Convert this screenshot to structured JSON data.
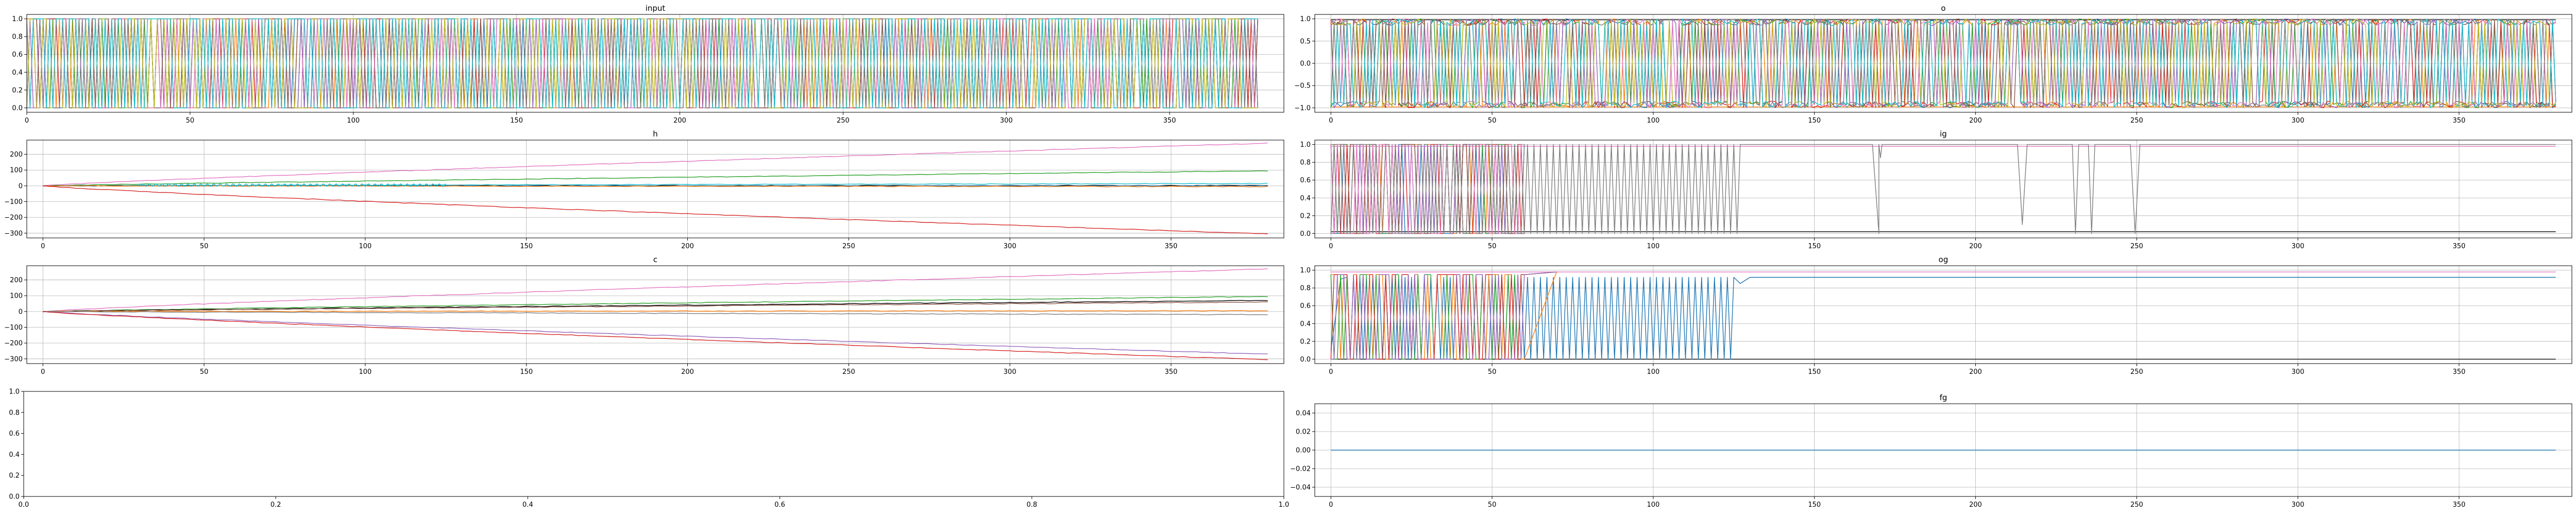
{
  "palette": [
    "#1f77b4",
    "#ff7f0e",
    "#2ca02c",
    "#d62728",
    "#9467bd",
    "#8c564b",
    "#e377c2",
    "#7f7f7f",
    "#bcbd22",
    "#17becf"
  ],
  "chart_data": [
    {
      "id": "input",
      "type": "line",
      "title": "input",
      "xlim": [
        0,
        385
      ],
      "ylim": [
        -0.05,
        1.05
      ],
      "xticks": [
        0,
        50,
        100,
        150,
        200,
        250,
        300,
        350
      ],
      "yticks": [
        0.0,
        0.2,
        0.4,
        0.6,
        0.8,
        1.0
      ],
      "grid": true,
      "legend": "none",
      "x_range": [
        0,
        377
      ],
      "series_description": "many binary series switching between 0 and 1 at almost every step",
      "series_count": 10,
      "pattern": "binary_toggle"
    },
    {
      "id": "o",
      "type": "line",
      "title": "o",
      "xlim": [
        -5,
        385
      ],
      "ylim": [
        -1.1,
        1.1
      ],
      "xticks": [
        0,
        50,
        100,
        150,
        200,
        250,
        300,
        350
      ],
      "yticks": [
        -1.0,
        -0.5,
        0.0,
        0.5,
        1.0
      ],
      "grid": true,
      "legend": "none",
      "x_range": [
        0,
        380
      ],
      "series_count": 10,
      "pattern": "signed_toggle"
    },
    {
      "id": "h",
      "type": "line",
      "title": "h",
      "xlim": [
        -5,
        385
      ],
      "ylim": [
        -330,
        290
      ],
      "xticks": [
        0,
        50,
        100,
        150,
        200,
        250,
        300,
        350
      ],
      "yticks": [
        -300,
        -200,
        -100,
        0,
        100,
        200
      ],
      "grid": true,
      "legend": "none",
      "x_range": [
        0,
        380
      ],
      "series": [
        {
          "color": "#e377c2",
          "end": 270
        },
        {
          "color": "#2ca02c",
          "end": 95
        },
        {
          "color": "#17becf",
          "end": 15
        },
        {
          "color": "#000000",
          "end": 2
        },
        {
          "color": "#1f77b4",
          "end": 0
        },
        {
          "color": "#ff7f0e",
          "end": -5
        },
        {
          "color": "#d62728",
          "end": -305
        }
      ],
      "oscillation": {
        "color": "#17becf",
        "x_range": [
          30,
          125
        ],
        "amplitude": 8
      }
    },
    {
      "id": "ig",
      "type": "line",
      "title": "ig",
      "xlim": [
        -5,
        385
      ],
      "ylim": [
        -0.05,
        1.05
      ],
      "xticks": [
        0,
        50,
        100,
        150,
        200,
        250,
        300,
        350
      ],
      "yticks": [
        0.0,
        0.2,
        0.4,
        0.6,
        0.8,
        1.0
      ],
      "grid": true,
      "legend": "none",
      "x_range": [
        0,
        380
      ],
      "dense_region": [
        0,
        60
      ],
      "grey_oscillation": [
        60,
        127
      ],
      "grey_dips": [
        [
          168,
          172,
          0.0
        ],
        [
          170,
          171,
          0.85
        ],
        [
          213,
          216,
          0.1
        ],
        [
          230,
          232,
          0.0
        ],
        [
          235,
          237,
          0.0
        ],
        [
          248,
          251,
          0.0
        ]
      ]
    },
    {
      "id": "c",
      "type": "line",
      "title": "c",
      "xlim": [
        -5,
        385
      ],
      "ylim": [
        -330,
        290
      ],
      "xticks": [
        0,
        50,
        100,
        150,
        200,
        250,
        300,
        350
      ],
      "yticks": [
        -300,
        -200,
        -100,
        0,
        100,
        200
      ],
      "grid": true,
      "legend": "none",
      "x_range": [
        0,
        380
      ],
      "series": [
        {
          "color": "#e377c2",
          "end": 270
        },
        {
          "color": "#2ca02c",
          "end": 95
        },
        {
          "color": "#000000",
          "end": 70
        },
        {
          "color": "#8c564b",
          "end": 60
        },
        {
          "color": "#ff7f0e",
          "end": 5
        },
        {
          "color": "#7f7f7f",
          "end": -20
        },
        {
          "color": "#9467bd",
          "end": -270
        },
        {
          "color": "#d62728",
          "end": -305
        }
      ]
    },
    {
      "id": "og",
      "type": "line",
      "title": "og",
      "xlim": [
        -5,
        385
      ],
      "ylim": [
        -0.05,
        1.05
      ],
      "xticks": [
        0,
        50,
        100,
        150,
        200,
        250,
        300,
        350
      ],
      "yticks": [
        0.0,
        0.2,
        0.4,
        0.6,
        0.8,
        1.0
      ],
      "grid": true,
      "legend": "none",
      "x_range": [
        0,
        380
      ],
      "blue_oscillation": [
        5,
        125
      ],
      "blue_level": 0.92
    },
    {
      "id": "empty",
      "type": "line",
      "title": "",
      "xlim": [
        0,
        1
      ],
      "ylim": [
        0,
        1
      ],
      "xticks": [
        0.0,
        0.2,
        0.4,
        0.6,
        0.8,
        1.0
      ],
      "yticks": [
        0.0,
        0.2,
        0.4,
        0.6,
        0.8,
        1.0
      ],
      "grid": false,
      "legend": "none"
    },
    {
      "id": "fg",
      "type": "line",
      "title": "fg",
      "xlim": [
        -5,
        385
      ],
      "ylim": [
        -0.05,
        0.05
      ],
      "xticks": [
        0,
        50,
        100,
        150,
        200,
        250,
        300,
        350
      ],
      "yticks": [
        -0.04,
        -0.02,
        0.0,
        0.02,
        0.04
      ],
      "grid": true,
      "legend": "none",
      "x_range": [
        0,
        380
      ],
      "series": [
        {
          "color": "#1f77b4",
          "value": 0.0
        }
      ]
    }
  ]
}
